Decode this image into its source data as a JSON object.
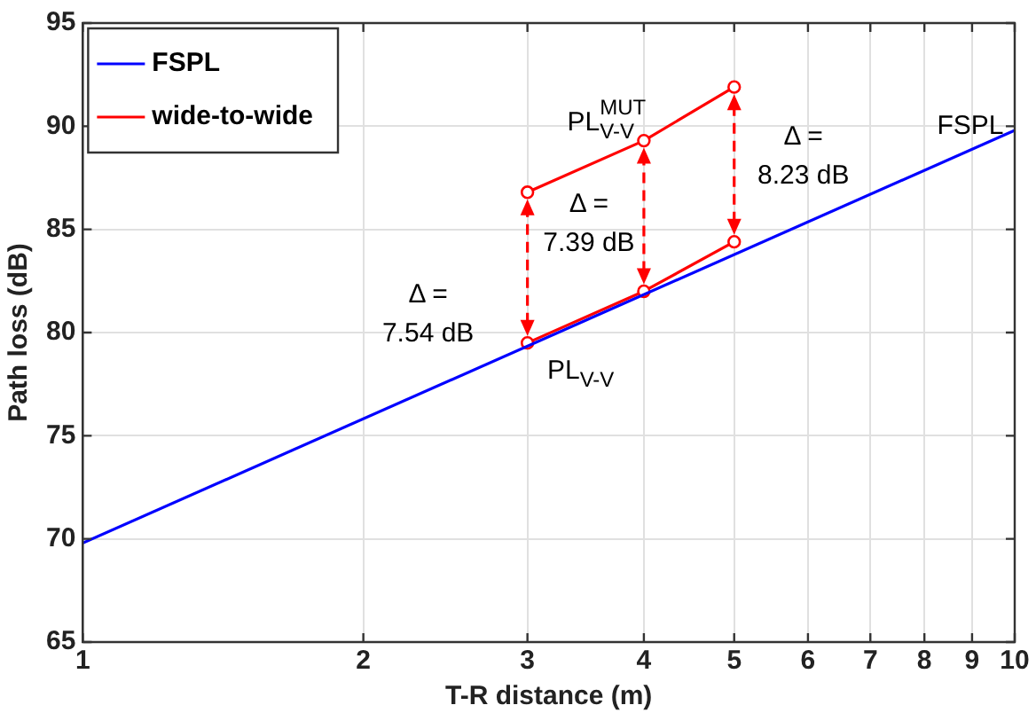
{
  "chart_data": {
    "type": "line",
    "xlabel": "T-R distance (m)",
    "ylabel": "Path loss (dB)",
    "log": "x",
    "xlim": [
      1,
      10
    ],
    "xticks": [
      1,
      2,
      3,
      4,
      5,
      6,
      7,
      8,
      9,
      10
    ],
    "ylim": [
      65,
      95
    ],
    "yticks": [
      65,
      70,
      75,
      80,
      85,
      90,
      95
    ],
    "grid": true,
    "legend": "top left",
    "line_style": "solid",
    "series": [
      {
        "name": "FSPL",
        "color": "#0000ff",
        "x": [
          1,
          10
        ],
        "values": [
          69.8,
          89.8
        ],
        "marker": "none"
      },
      {
        "name": "wide-to-wide",
        "color": "#ff0000",
        "x": [
          3,
          4,
          5
        ],
        "values": [
          79.5,
          82.0,
          84.4
        ],
        "marker": "circle"
      },
      {
        "color": "#ff0000",
        "x": [
          3,
          4,
          5
        ],
        "values": [
          86.8,
          89.3,
          91.9
        ],
        "marker": "circle"
      }
    ],
    "annotations": [
      {
        "text": "Δ = 7.54 dB",
        "x": 3,
        "y": 79.5
      },
      {
        "text": "Δ = 7.39 dB",
        "x": 4,
        "y": 82.0
      },
      {
        "text": "Δ = 8.23 dB",
        "x": 5,
        "y": 84.4
      },
      {
        "text": "PL$_{V-V}$$^{MUT}$",
        "x": 4,
        "y": 89.3
      },
      {
        "text": "PL$_{V-V}$",
        "x": 3,
        "y": 79.5
      },
      {
        "text": "FSPL",
        "x": 10,
        "y": 89.8
      }
    ]
  }
}
